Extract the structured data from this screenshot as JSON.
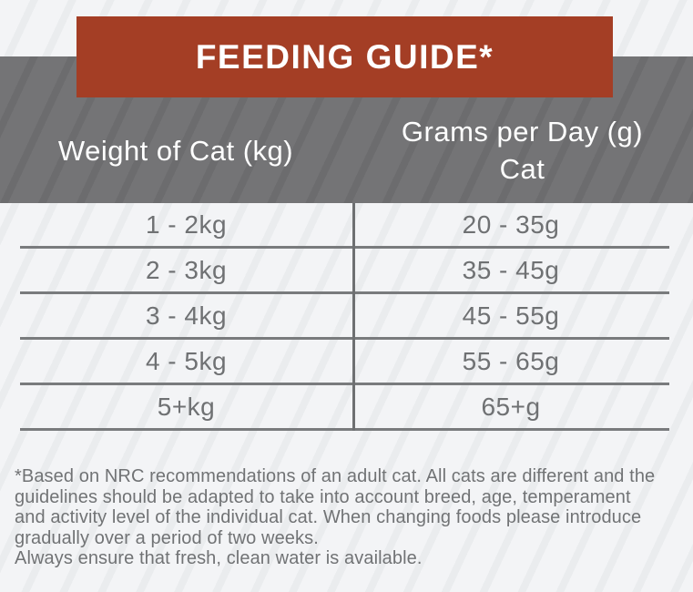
{
  "banner": {
    "title": "FEEDING GUIDE*",
    "bg_color": "#a43e25",
    "text_color": "#ffffff"
  },
  "table": {
    "header": {
      "col1": "Weight of Cat (kg)",
      "col2_line1": "Grams per Day (g)",
      "col2_line2": "Cat",
      "bg_color": "#6f7072",
      "text_color": "#ffffff"
    },
    "rows": [
      {
        "weight": "1 - 2kg",
        "grams": "20 - 35g"
      },
      {
        "weight": "2 - 3kg",
        "grams": "35 - 45g"
      },
      {
        "weight": "3 - 4kg",
        "grams": "45 - 55g"
      },
      {
        "weight": "4 - 5kg",
        "grams": "55 - 65g"
      },
      {
        "weight": "5+kg",
        "grams": "65+g"
      }
    ],
    "line_color": "#797b7d",
    "body_text_color": "#6f7173"
  },
  "footnote": {
    "lines": [
      "*Based on NRC recommendations of an adult cat. All cats are different and the",
      "guidelines should be adapted to take into account breed, age, temperament",
      "and activity level of the individual cat. When changing foods please introduce",
      "gradually over a period of two weeks.",
      "Always ensure that fresh, clean water is available."
    ],
    "text_color": "#717375"
  },
  "background": {
    "base_color": "#f3f4f6",
    "stripe_color": "#eaecee"
  }
}
